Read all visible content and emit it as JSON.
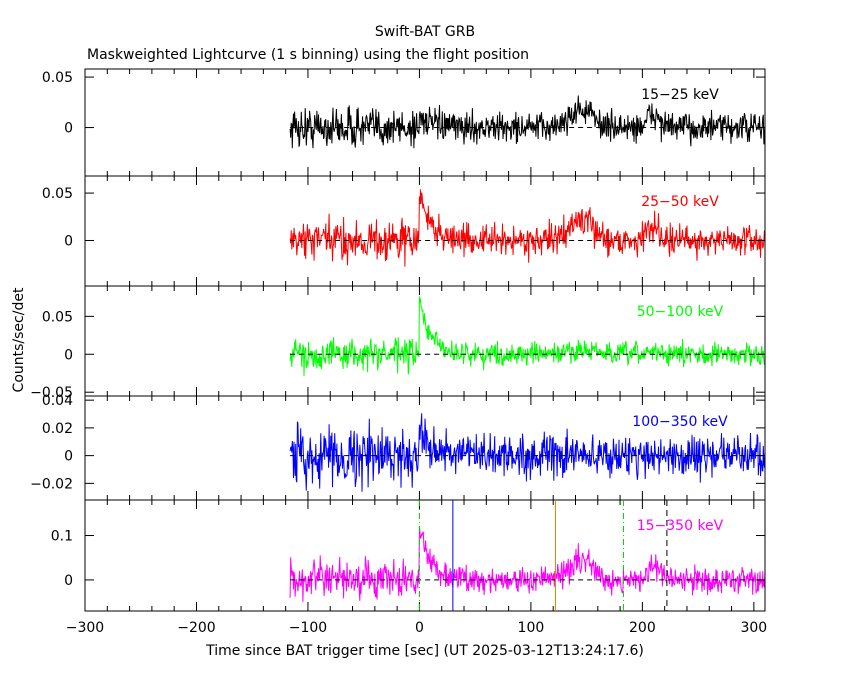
{
  "title": "Swift-BAT GRB",
  "subtitle": "Maskweighted Lightcurve (1 s binning) using the flight position",
  "chart_data": {
    "type": "line",
    "xlabel": "Time since BAT trigger time [sec] (UT 2025-03-12T13:24:17.6)",
    "ylabel": "Counts/sec/det",
    "xlim": [
      -300,
      310
    ],
    "x_ticks": [
      -300,
      -200,
      -100,
      0,
      100,
      200,
      300
    ],
    "x_tick_labels": [
      "−300",
      "−200",
      "−100",
      "0",
      "100",
      "200",
      "300"
    ],
    "data_start": -116,
    "data_end": 310,
    "grid": false,
    "panels": [
      {
        "band": "15−25 keV",
        "color": "#000000",
        "ylim": [
          -0.048,
          0.058
        ],
        "yticks": [
          0.05,
          0
        ],
        "ytick_labels": [
          "0.05",
          "0"
        ],
        "noise": 0.011,
        "peak_height": 0.012,
        "bump_height": 0.018
      },
      {
        "band": "25−50 keV",
        "color": "#ff0000",
        "ylim": [
          -0.048,
          0.068
        ],
        "yticks": [
          0.05,
          0
        ],
        "ytick_labels": [
          "0.05",
          "0"
        ],
        "noise": 0.012,
        "peak_height": 0.05,
        "bump_height": 0.022
      },
      {
        "band": "50−100 keV",
        "color": "#00ff00",
        "ylim": [
          -0.055,
          0.09
        ],
        "yticks": [
          0.05,
          0,
          -0.05
        ],
        "ytick_labels": [
          "0.05",
          "0",
          "−0.05"
        ],
        "noise": 0.011,
        "peak_height": 0.07,
        "bump_height": 0.006
      },
      {
        "band": "100−350 keV",
        "color": "#0000ff",
        "ylim": [
          -0.032,
          0.043
        ],
        "yticks": [
          0.04,
          0.02,
          0,
          -0.02
        ],
        "ytick_labels": [
          "0.04",
          "0.02",
          "0",
          "−0.02"
        ],
        "noise": 0.011,
        "peak_height": 0.022,
        "bump_height": 0.0
      },
      {
        "band": "15−350 keV",
        "color": "#ff00ff",
        "ylim": [
          -0.07,
          0.18
        ],
        "yticks": [
          0.1,
          0
        ],
        "ytick_labels": [
          "0.1",
          "0"
        ],
        "noise": 0.022,
        "peak_height": 0.12,
        "bump_height": 0.045
      }
    ],
    "markers": [
      {
        "x": 0,
        "color": "#00cc00",
        "style": "dash-dot"
      },
      {
        "x": 30,
        "color": "#0000ff",
        "style": "solid"
      },
      {
        "x": 122,
        "color": "#cc8800",
        "style": "solid"
      },
      {
        "x": 183,
        "color": "#00cc00",
        "style": "dash-dot"
      },
      {
        "x": 222,
        "color": "#000000",
        "style": "dashed"
      }
    ]
  }
}
